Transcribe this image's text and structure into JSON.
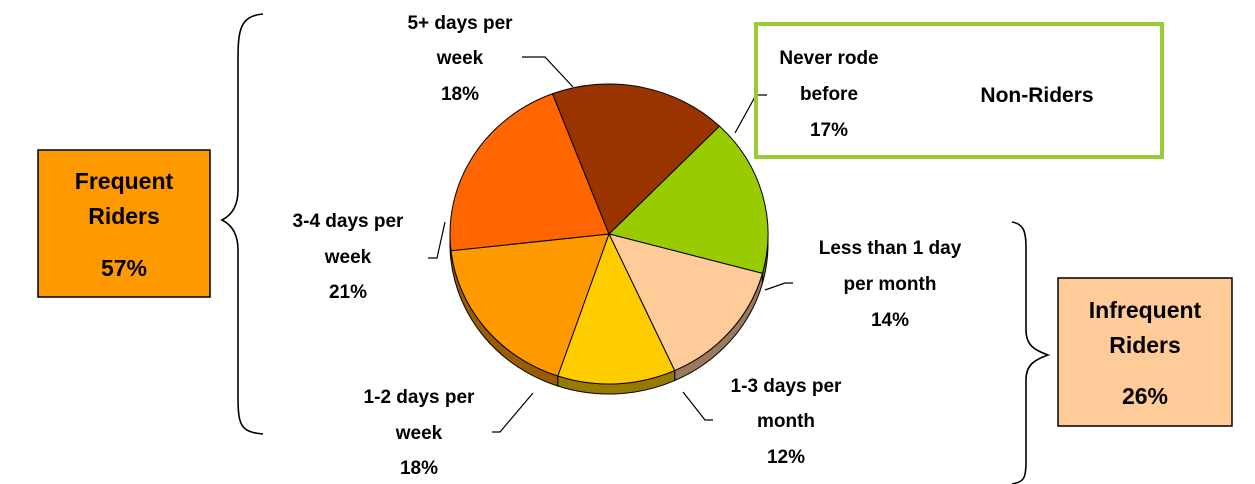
{
  "chart_data": {
    "type": "pie",
    "categories": [
      "Never rode before",
      "Less than 1 day per month",
      "1-3 days per month",
      "1-2 days per week",
      "3-4 days per week",
      "5+ days per week"
    ],
    "values": [
      17,
      14,
      12,
      18,
      21,
      18
    ],
    "unit": "%",
    "slices": [
      {
        "label_lines": [
          "Never rode",
          "before"
        ],
        "pct": "17%",
        "color": "#99cc00"
      },
      {
        "label_lines": [
          "Less than 1 day",
          "per month"
        ],
        "pct": "14%",
        "color": "#ffcc99"
      },
      {
        "label_lines": [
          "1-3 days per",
          "month"
        ],
        "pct": "12%",
        "color": "#ffcc00"
      },
      {
        "label_lines": [
          "1-2 days per",
          "week"
        ],
        "pct": "18%",
        "color": "#ff9900"
      },
      {
        "label_lines": [
          "3-4 days per",
          "week"
        ],
        "pct": "21%",
        "color": "#ff6600"
      },
      {
        "label_lines": [
          "5+ days per",
          "week"
        ],
        "pct": "18%",
        "color": "#993300"
      }
    ],
    "groups": {
      "frequent": {
        "title_lines": [
          "Frequent",
          "Riders"
        ],
        "pct": "57%",
        "color": "#ff9900"
      },
      "infrequent": {
        "title_lines": [
          "Infrequent",
          "Riders"
        ],
        "pct": "26%",
        "color": "#ffcc99"
      },
      "non_riders": {
        "title": "Non-Riders",
        "border_color": "#99cc33"
      }
    },
    "legend": "none"
  }
}
